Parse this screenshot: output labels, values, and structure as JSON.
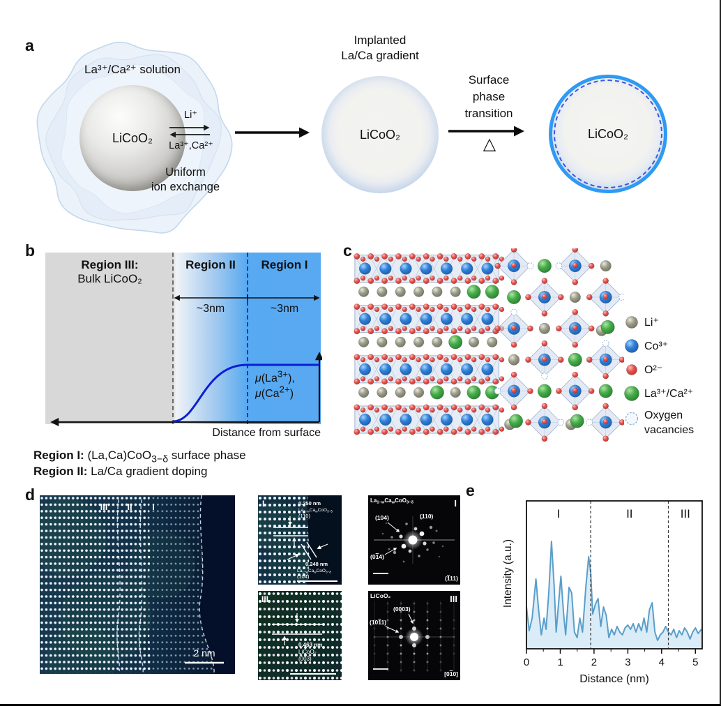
{
  "figure": {
    "panel_labels": {
      "a": "a",
      "b": "b",
      "c": "c",
      "d": "d",
      "e": "e"
    }
  },
  "a": {
    "solution_label": "La³⁺/Ca²⁺ solution",
    "particle_label": "LiCoO₂",
    "exchange_out": "Li⁺",
    "exchange_in": "La³⁺,Ca²⁺",
    "exchange_caption": "Uniform\nion exchange",
    "step1_title": "Implanted\nLa/Ca gradient",
    "gradient_particle_label": "LiCoO₂",
    "step2_title": "Surface\nphase\ntransition",
    "heat_symbol": "△",
    "coated_particle_label": "LiCoO₂"
  },
  "b": {
    "region3_title": "Region III:",
    "region3_sub": "Bulk LiCoO₂",
    "region2_title": "Region II",
    "region1_title": "Region I",
    "width2": "~3nm",
    "width1": "~3nm",
    "mu1": [
      {
        "t": "μ",
        "i": true
      },
      {
        "t": "(La"
      },
      {
        "t": "3+",
        "sup": true
      },
      {
        "t": "),"
      }
    ],
    "mu2": [
      {
        "t": "μ",
        "i": true
      },
      {
        "t": "(Ca"
      },
      {
        "t": "2+",
        "sup": true
      },
      {
        "t": ")"
      }
    ],
    "axis_label": "Distance from surface",
    "caption1": [
      {
        "t": "Region I:",
        "b": true
      },
      {
        "t": " (La,Ca)CoO"
      },
      {
        "t": "3−δ",
        "sub": true
      },
      {
        "t": " surface phase"
      }
    ],
    "caption2": [
      {
        "t": "Region II:",
        "b": true
      },
      {
        "t": " La/Ca gradient doping"
      }
    ]
  },
  "c": {
    "colors": {
      "li": "#8e8f80",
      "co": "#2f80d8",
      "o": "#e8524d",
      "laca": "#45ad49",
      "vac": "#8fb3dd",
      "octa": "#cdd9ec",
      "octa_edge": "#9db1c9"
    },
    "legend": [
      {
        "label": "Li⁺"
      },
      {
        "label": "Co³⁺"
      },
      {
        "label": "O²⁻"
      },
      {
        "label": "La³⁺/Ca²⁺"
      },
      {
        "label": "Oxygen\nvacancies"
      }
    ]
  },
  "d": {
    "main": {
      "r3": "III",
      "r2": "II",
      "r1": "I",
      "scale": "2 nm"
    },
    "inset1": {
      "label": "I",
      "d1": "0.250 nm",
      "f1": [
        {
          "t": "La"
        },
        {
          "t": "1−w",
          "sub": true
        },
        {
          "t": "Ca"
        },
        {
          "t": "w",
          "sub": true
        },
        {
          "t": "CoO"
        },
        {
          "t": "3−δ",
          "sub": true
        }
      ],
      "p1": "(110)",
      "d2": "0.248 nm",
      "f2": [
        {
          "t": "La"
        },
        {
          "t": "1−w",
          "sub": true
        },
        {
          "t": "Ca"
        },
        {
          "t": "w",
          "sub": true
        },
        {
          "t": "CoO"
        },
        {
          "t": "3−δ",
          "sub": true
        }
      ],
      "p2": "(104)"
    },
    "inset2": {
      "label": "III",
      "d1": "0.463 nm",
      "f1": "LiCoO₂",
      "p1": "(003)"
    },
    "fft1": {
      "title": [
        {
          "t": "La"
        },
        {
          "t": "1−w",
          "sub": true
        },
        {
          "t": "Ca"
        },
        {
          "t": "w",
          "sub": true
        },
        {
          "t": "CoO"
        },
        {
          "t": "3−δ",
          "sub": true
        }
      ],
      "label": "I",
      "s1": "(104)",
      "s2": "(110)",
      "s3": [
        {
          "t": "(0"
        },
        {
          "t": "1",
          "ov": true
        },
        {
          "t": "4)"
        }
      ],
      "zone": [
        {
          "t": "("
        },
        {
          "t": "1",
          "ov": true
        },
        {
          "t": "11)"
        }
      ]
    },
    "fft2": {
      "title": "LiCoO₂",
      "label": "III",
      "s1": "(0003)",
      "s2": [
        {
          "t": "(10"
        },
        {
          "t": "1",
          "ov": true
        },
        {
          "t": "1)"
        }
      ],
      "zone": [
        {
          "t": "[0"
        },
        {
          "t": "1",
          "ov": true
        },
        {
          "t": "0]"
        }
      ]
    }
  },
  "e": {
    "ylabel": "Intensity (a.u.)"
  },
  "chart_data": {
    "type": "area",
    "title": "",
    "xlabel": "Distance (nm)",
    "ylabel": "Intensity (a.u.)",
    "xlim": [
      0,
      5.2
    ],
    "ylim": [
      0,
      1
    ],
    "x_ticks": [
      0,
      1,
      2,
      3,
      4,
      5
    ],
    "grid": false,
    "region_boundaries": [
      1.9,
      4.2
    ],
    "region_labels": [
      "I",
      "II",
      "III"
    ],
    "line_color": "#5b9ec9",
    "fill_color": "#daecf8",
    "x": [
      0,
      0.08,
      0.17,
      0.28,
      0.36,
      0.44,
      0.52,
      0.58,
      0.66,
      0.74,
      0.82,
      0.88,
      0.96,
      1.02,
      1.1,
      1.16,
      1.26,
      1.34,
      1.42,
      1.5,
      1.58,
      1.66,
      1.76,
      1.84,
      1.9,
      1.96,
      2.04,
      2.12,
      2.2,
      2.28,
      2.36,
      2.44,
      2.52,
      2.6,
      2.68,
      2.76,
      2.84,
      2.92,
      3.0,
      3.08,
      3.16,
      3.24,
      3.32,
      3.4,
      3.48,
      3.56,
      3.64,
      3.72,
      3.8,
      3.88,
      3.96,
      4.04,
      4.12,
      4.2,
      4.28,
      4.36,
      4.44,
      4.52,
      4.6,
      4.68,
      4.76,
      4.84,
      4.92,
      5.0,
      5.08,
      5.18
    ],
    "y": [
      0.3,
      0.13,
      0.22,
      0.5,
      0.28,
      0.1,
      0.22,
      0.14,
      0.4,
      0.77,
      0.45,
      0.12,
      0.35,
      0.52,
      0.25,
      0.1,
      0.44,
      0.4,
      0.12,
      0.08,
      0.22,
      0.12,
      0.45,
      0.66,
      0.55,
      0.25,
      0.32,
      0.36,
      0.16,
      0.3,
      0.24,
      0.08,
      0.14,
      0.1,
      0.16,
      0.12,
      0.1,
      0.15,
      0.17,
      0.14,
      0.18,
      0.12,
      0.18,
      0.13,
      0.22,
      0.12,
      0.28,
      0.33,
      0.12,
      0.06,
      0.1,
      0.12,
      0.16,
      0.12,
      0.1,
      0.14,
      0.08,
      0.13,
      0.1,
      0.15,
      0.12,
      0.07,
      0.12,
      0.15,
      0.11,
      0.14
    ]
  }
}
